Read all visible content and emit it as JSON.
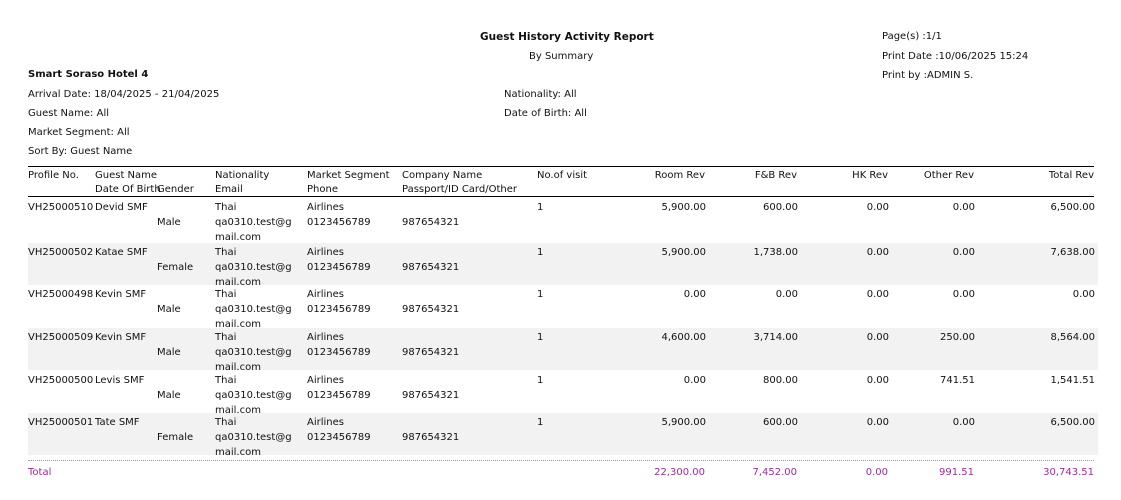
{
  "report": {
    "title": "Guest History Activity Report",
    "subtitle": "By Summary",
    "hotel": "Smart Soraso Hotel 4",
    "pages": "Page(s) :1/1",
    "print_date": "Print Date :10/06/2025 15:24",
    "print_by": "Print by :ADMIN S.",
    "filters": {
      "arrival": "Arrival Date: 18/04/2025 - 21/04/2025",
      "guest_name": "Guest Name: All",
      "market_segment": "Market Segment: All",
      "sort_by": "Sort By: Guest Name",
      "nationality": "Nationality: All",
      "dob": "Date of Birth: All"
    }
  },
  "columns": {
    "profile": "Profile No.",
    "guest_name": "Guest Name",
    "dob": "Date Of Birth",
    "gender": "Gender",
    "nationality": "Nationality",
    "email": "Email",
    "market": "Market Segment",
    "phone": "Phone",
    "company": "Company Name",
    "passport": "Passport/ID Card/Other",
    "visits": "No.of visit",
    "room": "Room Rev",
    "fb": "F&B Rev",
    "hk": "HK Rev",
    "other": "Other Rev",
    "total": "Total Rev"
  },
  "rows": [
    {
      "profile": "VH25000510",
      "name": "Devid SMF",
      "gender": "Male",
      "nationality": "Thai",
      "email1": "qa0310.test@g",
      "email2": "mail.com",
      "market": "Airlines",
      "phone": "0123456789",
      "passport": "987654321",
      "visits": "1",
      "room": "5,900.00",
      "fb": "600.00",
      "hk": "0.00",
      "other": "0.00",
      "total": "6,500.00"
    },
    {
      "profile": "VH25000502",
      "name": "Katae SMF",
      "gender": "Female",
      "nationality": "Thai",
      "email1": "qa0310.test@g",
      "email2": "mail.com",
      "market": "Airlines",
      "phone": "0123456789",
      "passport": "987654321",
      "visits": "1",
      "room": "5,900.00",
      "fb": "1,738.00",
      "hk": "0.00",
      "other": "0.00",
      "total": "7,638.00"
    },
    {
      "profile": "VH25000498",
      "name": "Kevin SMF",
      "gender": "Male",
      "nationality": "Thai",
      "email1": "qa0310.test@g",
      "email2": "mail.com",
      "market": "Airlines",
      "phone": "0123456789",
      "passport": "987654321",
      "visits": "1",
      "room": "0.00",
      "fb": "0.00",
      "hk": "0.00",
      "other": "0.00",
      "total": "0.00"
    },
    {
      "profile": "VH25000509",
      "name": "Kevin SMF",
      "gender": "Male",
      "nationality": "Thai",
      "email1": "qa0310.test@g",
      "email2": "mail.com",
      "market": "Airlines",
      "phone": "0123456789",
      "passport": "987654321",
      "visits": "1",
      "room": "4,600.00",
      "fb": "3,714.00",
      "hk": "0.00",
      "other": "250.00",
      "total": "8,564.00"
    },
    {
      "profile": "VH25000500",
      "name": "Levis SMF",
      "gender": "Male",
      "nationality": "Thai",
      "email1": "qa0310.test@g",
      "email2": "mail.com",
      "market": "Airlines",
      "phone": "0123456789",
      "passport": "987654321",
      "visits": "1",
      "room": "0.00",
      "fb": "800.00",
      "hk": "0.00",
      "other": "741.51",
      "total": "1,541.51"
    },
    {
      "profile": "VH25000501",
      "name": "Tate SMF",
      "gender": "Female",
      "nationality": "Thai",
      "email1": "qa0310.test@g",
      "email2": "mail.com",
      "market": "Airlines",
      "phone": "0123456789",
      "passport": "987654321",
      "visits": "1",
      "room": "5,900.00",
      "fb": "600.00",
      "hk": "0.00",
      "other": "0.00",
      "total": "6,500.00"
    }
  ],
  "totals": {
    "label": "Total",
    "room": "22,300.00",
    "fb": "7,452.00",
    "hk": "0.00",
    "other": "991.51",
    "total": "30,743.51"
  }
}
